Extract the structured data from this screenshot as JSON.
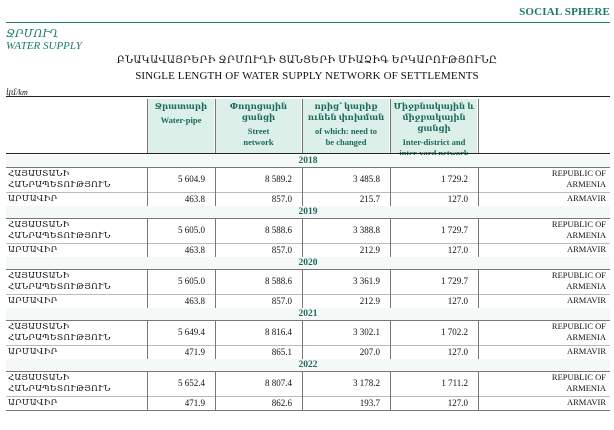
{
  "header": {
    "sphere": "SOCIAL SPHERE",
    "section_am": "ՋՐՄՈՒՂ",
    "section_en": "WATER SUPPLY",
    "title_am": "ԲՆԱԿԱՎԱՅՐԵՐԻ ՋՐՄՈՒՂԻ ՑԱՆՑԵՐԻ ՄԻԱՁԻԳ ԵՐԿԱՐՈՒԹՅՈՒՆԸ",
    "title_en": "SINGLE LENGTH OF WATER SUPPLY NETWORK OF SETTLEMENTS",
    "unit": "կմ/km"
  },
  "columns": [
    {
      "am": [
        "Ջրատարի"
      ],
      "en": [
        "Water-pipe"
      ]
    },
    {
      "am": [
        "Փողոցային",
        "ցանցի"
      ],
      "en": [
        "Street",
        "network"
      ]
    },
    {
      "am": [
        "որից՝ կարիք",
        "ունեն փոխման"
      ],
      "en": [
        "of which: need to",
        "be changed"
      ]
    },
    {
      "am": [
        "Միջբնակային և",
        "միջբակային ցանցի"
      ],
      "en": [
        "Inter-district and",
        "inter-yard network"
      ]
    }
  ],
  "years": [
    {
      "year": "2018",
      "rows": [
        {
          "am": [
            "ՀԱՅԱՍՏԱՆԻ",
            "ՀԱՆՐԱՊԵՏՈՒԹՅՈՒՆ"
          ],
          "en": [
            "REPUBLIC OF",
            "ARMENIA"
          ],
          "v": [
            "5 604.9",
            "8 589.2",
            "3 485.8",
            "1 729.2"
          ]
        },
        {
          "am": [
            "ԱՐՄԱՎԻՐ"
          ],
          "en": [
            "ARMAVIR"
          ],
          "v": [
            "463.8",
            "857.0",
            "215.7",
            "127.0"
          ]
        }
      ]
    },
    {
      "year": "2019",
      "rows": [
        {
          "am": [
            "ՀԱՅԱՍՏԱՆԻ",
            "ՀԱՆՐԱՊԵՏՈՒԹՅՈՒՆ"
          ],
          "en": [
            "REPUBLIC OF",
            "ARMENIA"
          ],
          "v": [
            "5 605.0",
            "8 588.6",
            "3 388.8",
            "1 729.7"
          ]
        },
        {
          "am": [
            "ԱՐՄԱՎԻՐ"
          ],
          "en": [
            "ARMAVIR"
          ],
          "v": [
            "463.8",
            "857.0",
            "212.9",
            "127.0"
          ]
        }
      ]
    },
    {
      "year": "2020",
      "rows": [
        {
          "am": [
            "ՀԱՅԱՍՏԱՆԻ",
            "ՀԱՆՐԱՊԵՏՈՒԹՅՈՒՆ"
          ],
          "en": [
            "REPUBLIC OF",
            "ARMENIA"
          ],
          "v": [
            "5 605.0",
            "8 588.6",
            "3 361.9",
            "1 729.7"
          ]
        },
        {
          "am": [
            "ԱՐՄԱՎԻՐ"
          ],
          "en": [
            "ARMAVIR"
          ],
          "v": [
            "463.8",
            "857.0",
            "212.9",
            "127.0"
          ]
        }
      ]
    },
    {
      "year": "2021",
      "rows": [
        {
          "am": [
            "ՀԱՅԱՍՏԱՆԻ",
            "ՀԱՆՐԱՊԵՏՈՒԹՅՈՒՆ"
          ],
          "en": [
            "REPUBLIC OF",
            "ARMENIA"
          ],
          "v": [
            "5 649.4",
            "8 816.4",
            "3 302.1",
            "1 702.2"
          ]
        },
        {
          "am": [
            "ԱՐՄԱՎԻՐ"
          ],
          "en": [
            "ARMAVIR"
          ],
          "v": [
            "471.9",
            "865.1",
            "207.0",
            "127.0"
          ]
        }
      ]
    },
    {
      "year": "2022",
      "rows": [
        {
          "am": [
            "ՀԱՅԱՍՏԱՆԻ",
            "ՀԱՆՐԱՊԵՏՈՒԹՅՈՒՆ"
          ],
          "en": [
            "REPUBLIC OF",
            "ARMENIA"
          ],
          "v": [
            "5 652.4",
            "8 807.4",
            "3 178.2",
            "1 711.2"
          ]
        },
        {
          "am": [
            "ԱՐՄԱՎԻՐ"
          ],
          "en": [
            "ARMAVIR"
          ],
          "v": [
            "471.9",
            "862.6",
            "193.7",
            "127.0"
          ]
        }
      ]
    }
  ]
}
